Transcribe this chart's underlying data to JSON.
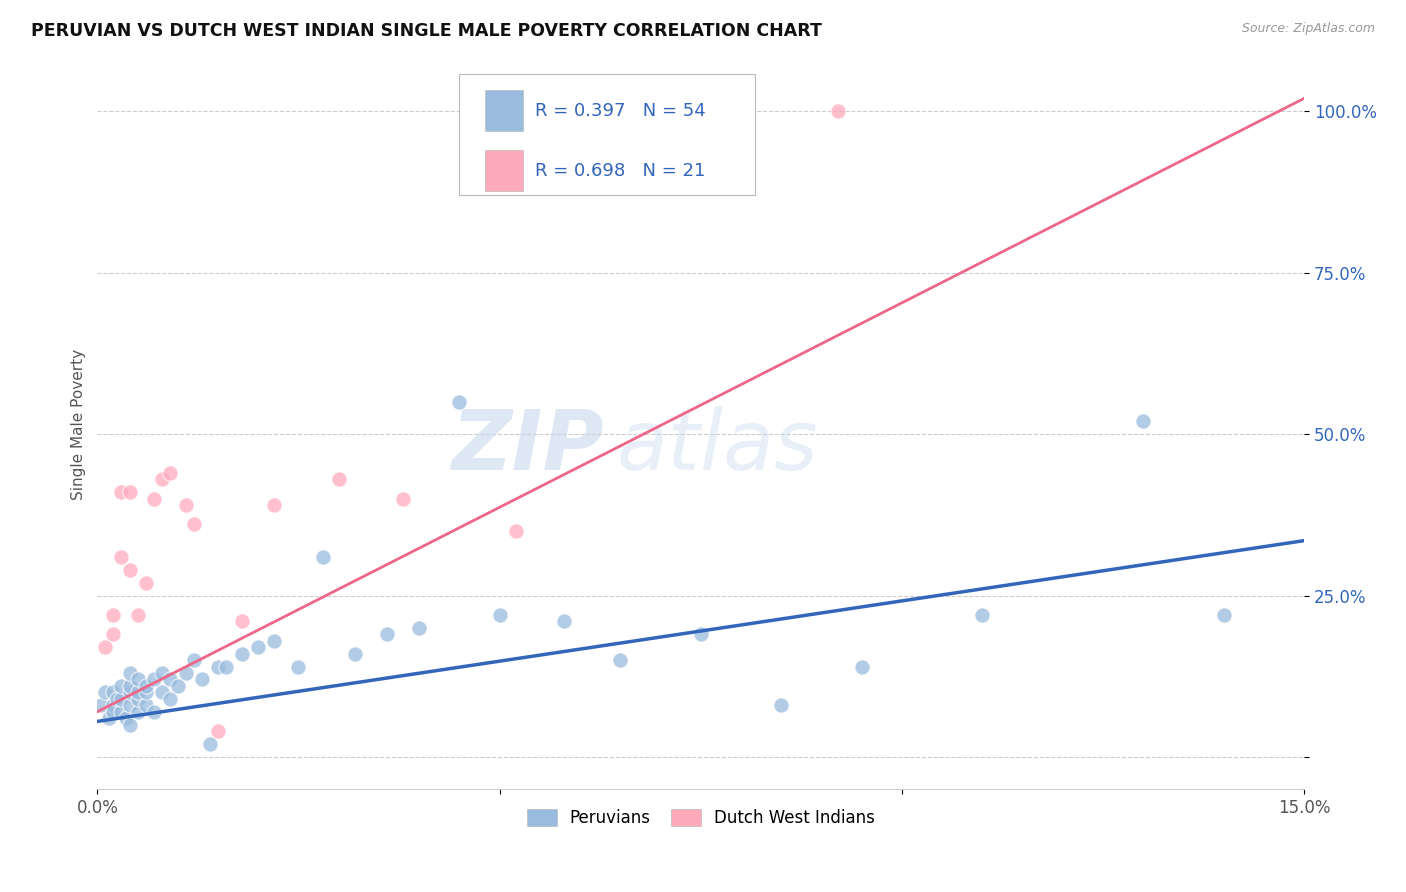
{
  "title": "PERUVIAN VS DUTCH WEST INDIAN SINGLE MALE POVERTY CORRELATION CHART",
  "source": "Source: ZipAtlas.com",
  "ylabel": "Single Male Poverty",
  "legend_label1": "Peruvians",
  "legend_label2": "Dutch West Indians",
  "r1": "0.397",
  "n1": "54",
  "r2": "0.698",
  "n2": "21",
  "color_blue": "#99BBDD",
  "color_pink": "#FFAABB",
  "color_blue_line": "#3366BB",
  "color_pink_line": "#EE6688",
  "color_text_blue": "#3366BB",
  "watermark_zip": "ZIP",
  "watermark_atlas": "atlas",
  "xlim": [
    0.0,
    0.15
  ],
  "ylim": [
    -0.05,
    1.08
  ],
  "xticks": [
    0.0,
    0.05,
    0.1,
    0.15
  ],
  "xticklabels": [
    "0.0%",
    "",
    "",
    "15.0%"
  ],
  "yticks": [
    0.0,
    0.25,
    0.5,
    0.75,
    1.0
  ],
  "yticklabels": [
    "",
    "25.0%",
    "50.0%",
    "75.0%",
    "100.0%"
  ],
  "blue_trend_x": [
    0.0,
    0.15
  ],
  "blue_trend_y": [
    0.055,
    0.335
  ],
  "pink_trend_x": [
    0.0,
    0.15
  ],
  "pink_trend_y": [
    0.07,
    1.02
  ],
  "blue_x": [
    0.0005,
    0.001,
    0.0015,
    0.002,
    0.002,
    0.002,
    0.0025,
    0.003,
    0.003,
    0.003,
    0.0035,
    0.004,
    0.004,
    0.004,
    0.004,
    0.004,
    0.005,
    0.005,
    0.005,
    0.005,
    0.006,
    0.006,
    0.006,
    0.007,
    0.007,
    0.008,
    0.008,
    0.009,
    0.009,
    0.01,
    0.011,
    0.012,
    0.013,
    0.014,
    0.015,
    0.016,
    0.018,
    0.02,
    0.022,
    0.025,
    0.028,
    0.032,
    0.036,
    0.04,
    0.045,
    0.05,
    0.058,
    0.065,
    0.075,
    0.085,
    0.095,
    0.11,
    0.13,
    0.14
  ],
  "blue_y": [
    0.08,
    0.1,
    0.06,
    0.08,
    0.07,
    0.1,
    0.09,
    0.07,
    0.09,
    0.11,
    0.06,
    0.05,
    0.08,
    0.1,
    0.11,
    0.13,
    0.07,
    0.09,
    0.1,
    0.12,
    0.08,
    0.1,
    0.11,
    0.07,
    0.12,
    0.1,
    0.13,
    0.09,
    0.12,
    0.11,
    0.13,
    0.15,
    0.12,
    0.02,
    0.14,
    0.14,
    0.16,
    0.17,
    0.18,
    0.14,
    0.31,
    0.16,
    0.19,
    0.2,
    0.55,
    0.22,
    0.21,
    0.15,
    0.19,
    0.08,
    0.14,
    0.22,
    0.52,
    0.22
  ],
  "pink_x": [
    0.001,
    0.002,
    0.002,
    0.003,
    0.003,
    0.004,
    0.004,
    0.005,
    0.006,
    0.007,
    0.008,
    0.009,
    0.011,
    0.012,
    0.015,
    0.018,
    0.022,
    0.03,
    0.038,
    0.052,
    0.092
  ],
  "pink_y": [
    0.17,
    0.19,
    0.22,
    0.31,
    0.41,
    0.29,
    0.41,
    0.22,
    0.27,
    0.4,
    0.43,
    0.44,
    0.39,
    0.36,
    0.04,
    0.21,
    0.39,
    0.43,
    0.4,
    0.35,
    1.0
  ]
}
